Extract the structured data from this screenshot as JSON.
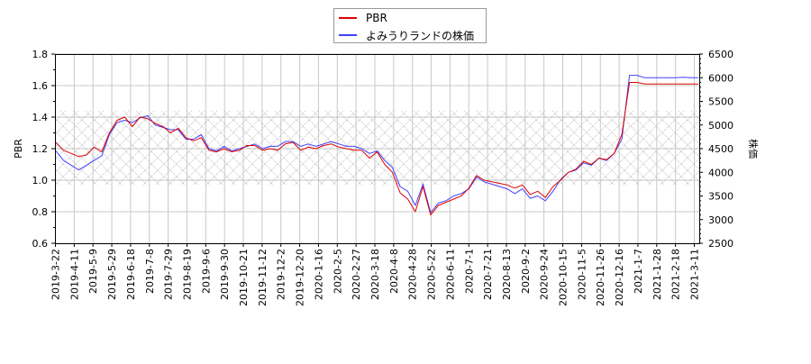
{
  "chart_data": {
    "type": "line",
    "title": "",
    "legend": {
      "position": "top-center",
      "entries": [
        {
          "label": "PBR",
          "color": "#e00000",
          "axis": "left"
        },
        {
          "label": "よみうりランドの株価",
          "color": "#4040ff",
          "axis": "right"
        }
      ]
    },
    "left_axis": {
      "label": "PBR",
      "range": [
        0.6,
        1.8
      ],
      "ticks": [
        "0.6",
        "0.8",
        "1.0",
        "1.2",
        "1.4",
        "1.6",
        "1.8"
      ]
    },
    "right_axis": {
      "label": "株価",
      "range": [
        2500,
        6500
      ],
      "ticks": [
        "2500",
        "3000",
        "3500",
        "4000",
        "4500",
        "5000",
        "5500",
        "6000",
        "6500"
      ]
    },
    "x_tick_labels": [
      "2019-3-22",
      "2019-4-11",
      "2019-5-9",
      "2019-5-29",
      "2019-6-18",
      "2019-7-8",
      "2019-7-29",
      "2019-8-19",
      "2019-9-6",
      "2019-9-30",
      "2019-10-21",
      "2019-11-12",
      "2019-12-2",
      "2019-12-20",
      "2020-1-16",
      "2020-2-5",
      "2020-2-27",
      "2020-3-18",
      "2020-4-8",
      "2020-4-28",
      "2020-5-22",
      "2020-6-11",
      "2020-7-1",
      "2020-7-21",
      "2020-8-13",
      "2020-9-2",
      "2020-9-24",
      "2020-10-15",
      "2020-11-5",
      "2020-11-26",
      "2020-12-16",
      "2021-1-7",
      "2021-1-28",
      "2021-2-18",
      "2021-3-11"
    ],
    "grid": true,
    "shaded_band": {
      "pbr_from": 0.97,
      "pbr_to": 1.44,
      "pattern": "crosshatch"
    },
    "series": [
      {
        "name": "PBR",
        "color": "#e00000",
        "values": [
          1.24,
          1.19,
          1.17,
          1.15,
          1.16,
          1.21,
          1.18,
          1.3,
          1.38,
          1.4,
          1.34,
          1.4,
          1.39,
          1.36,
          1.34,
          1.3,
          1.33,
          1.27,
          1.25,
          1.27,
          1.19,
          1.18,
          1.2,
          1.18,
          1.19,
          1.22,
          1.22,
          1.19,
          1.2,
          1.19,
          1.23,
          1.24,
          1.19,
          1.21,
          1.2,
          1.22,
          1.23,
          1.21,
          1.2,
          1.19,
          1.19,
          1.14,
          1.18,
          1.1,
          1.05,
          0.92,
          0.88,
          0.8,
          0.96,
          0.78,
          0.84,
          0.86,
          0.88,
          0.9,
          0.95,
          1.03,
          1.0,
          0.99,
          0.98,
          0.97,
          0.95,
          0.97,
          0.91,
          0.93,
          0.89,
          0.96,
          1.0,
          1.05,
          1.07,
          1.12,
          1.1,
          1.14,
          1.13,
          1.17,
          1.29,
          1.62,
          1.62,
          1.61,
          1.61,
          1.61,
          1.61,
          1.61,
          1.61,
          1.61,
          1.61
        ]
      },
      {
        "name": "よみうりランドの株価",
        "color": "#4040ff",
        "values": [
          4450,
          4250,
          4150,
          4050,
          4150,
          4250,
          4350,
          4800,
          5050,
          5100,
          5050,
          5150,
          5200,
          5000,
          4950,
          4900,
          4900,
          4700,
          4700,
          4800,
          4500,
          4450,
          4550,
          4450,
          4500,
          4550,
          4600,
          4500,
          4550,
          4550,
          4650,
          4650,
          4550,
          4600,
          4550,
          4600,
          4650,
          4600,
          4550,
          4550,
          4500,
          4400,
          4450,
          4250,
          4100,
          3700,
          3600,
          3300,
          3750,
          3150,
          3350,
          3400,
          3500,
          3550,
          3650,
          3900,
          3800,
          3750,
          3700,
          3650,
          3550,
          3650,
          3450,
          3500,
          3400,
          3600,
          3850,
          4000,
          4050,
          4200,
          4150,
          4300,
          4250,
          4400,
          4700,
          6050,
          6050,
          6000,
          6000,
          6000,
          6000,
          6000,
          6010,
          6000,
          6000
        ]
      }
    ]
  }
}
